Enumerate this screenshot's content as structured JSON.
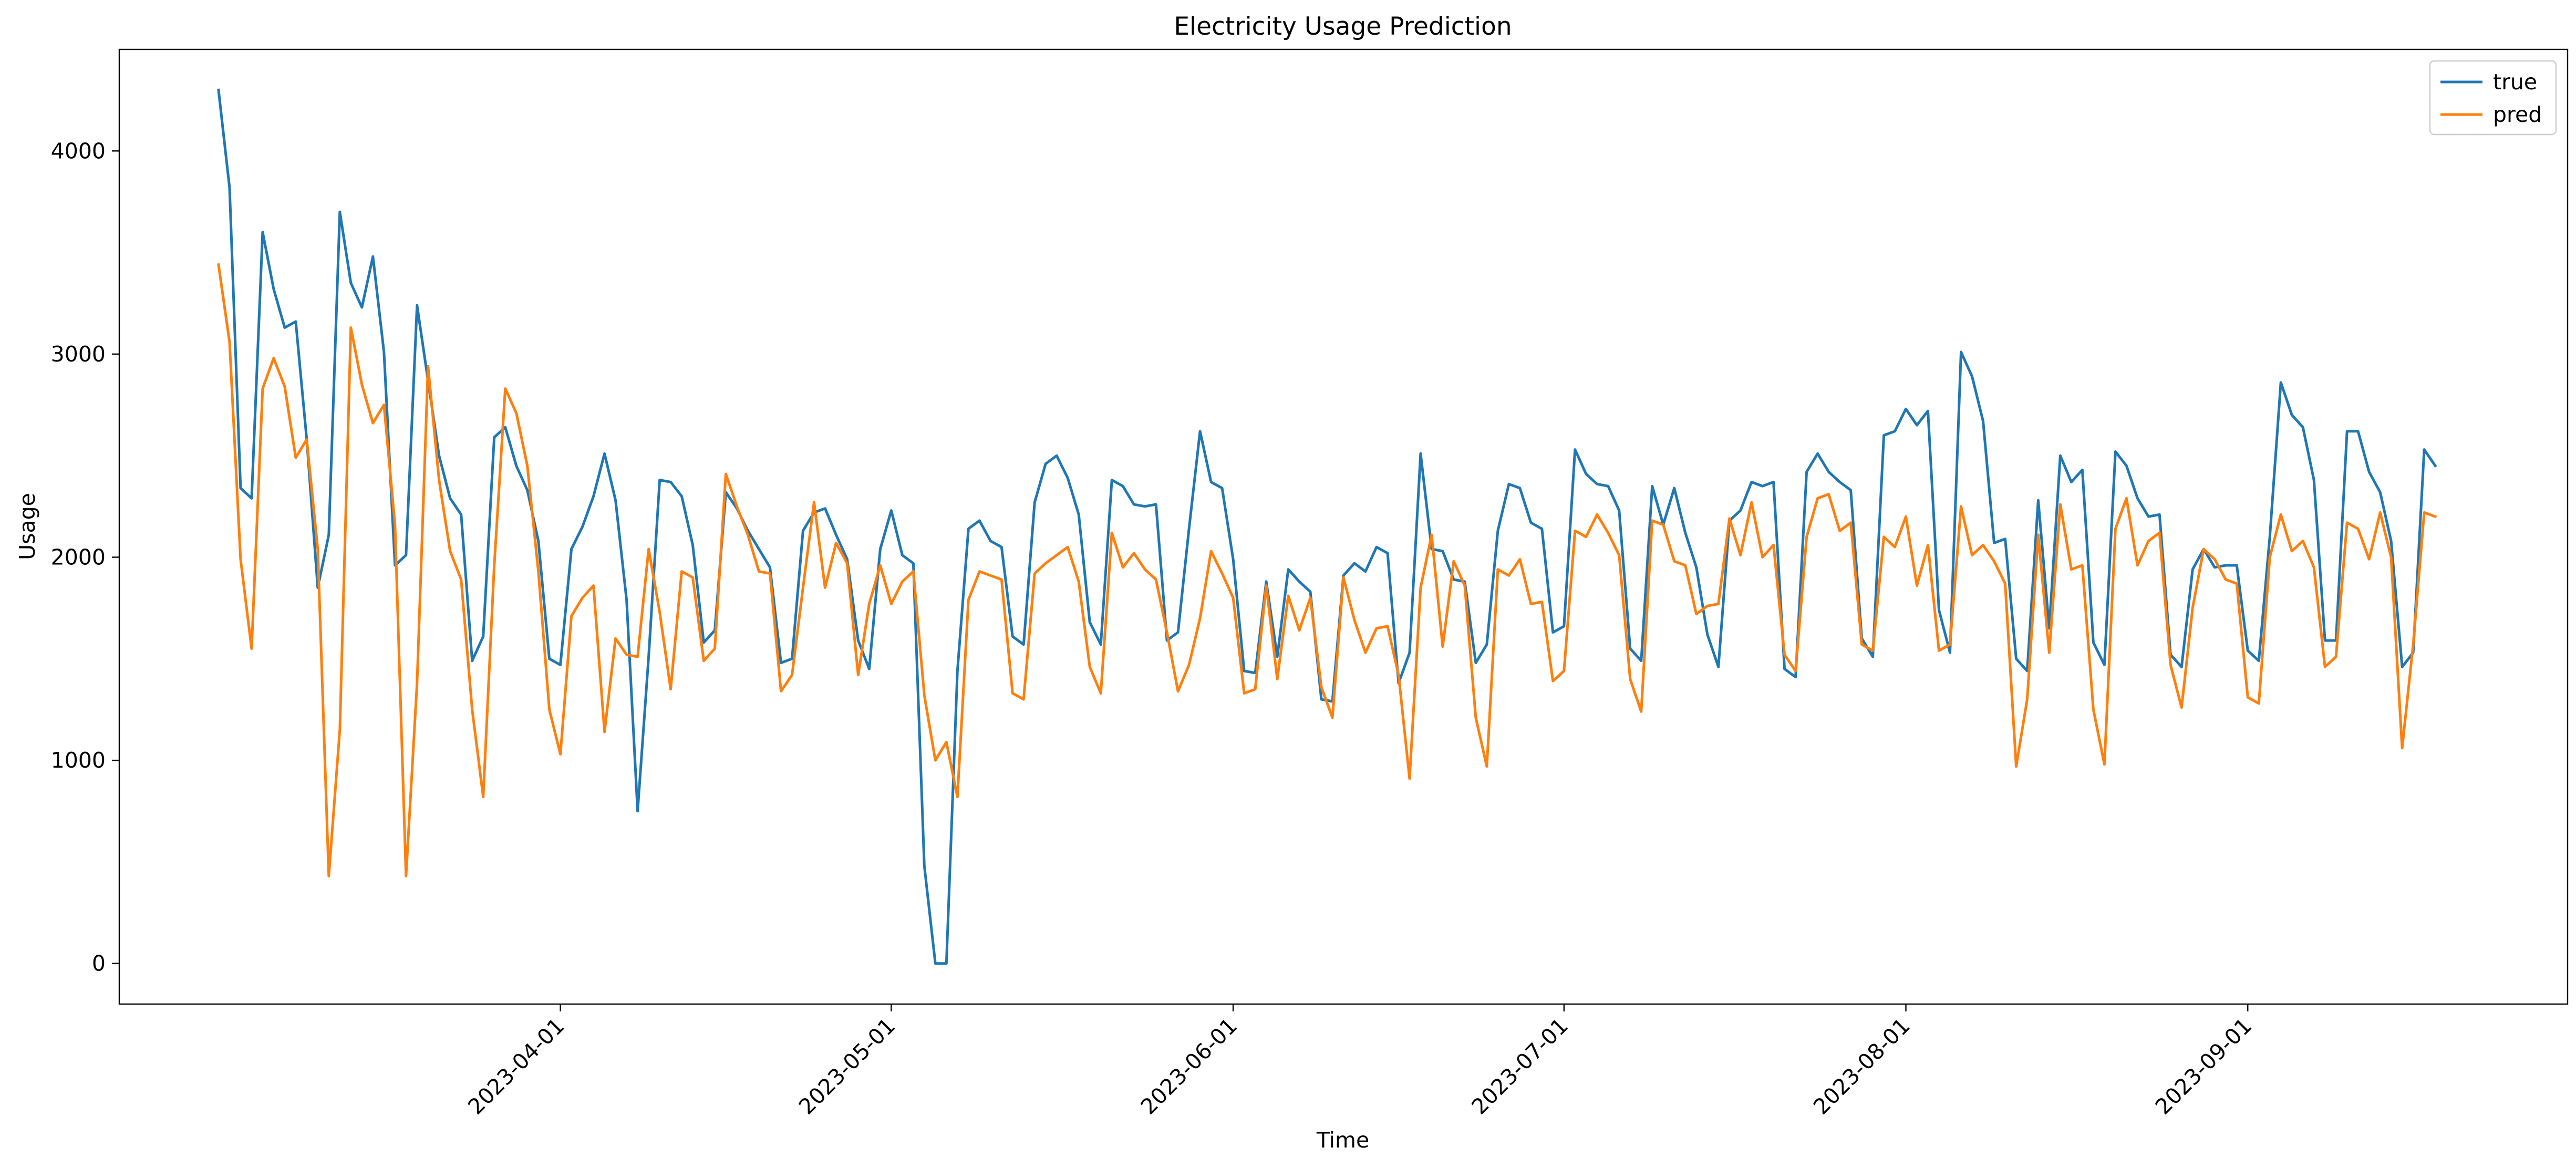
{
  "chart_data": {
    "type": "line",
    "title": "Electricity Usage Prediction",
    "xlabel": "Time",
    "ylabel": "Usage",
    "x_start": "2023-03-01",
    "x_step_days": 1,
    "xlim": [
      "2023-02-20",
      "2023-09-30"
    ],
    "ylim": [
      -200,
      4500
    ],
    "x_ticks": [
      "2023-04-01",
      "2023-05-01",
      "2023-06-01",
      "2023-07-01",
      "2023-08-01",
      "2023-09-01"
    ],
    "y_ticks": [
      0,
      1000,
      2000,
      3000,
      4000
    ],
    "grid": false,
    "legend_position": "top-right",
    "colors": {
      "true": "#1f77b4",
      "pred": "#ff7f0e"
    },
    "series": [
      {
        "name": "true",
        "values": [
          4300,
          3820,
          2340,
          2290,
          3600,
          3320,
          3130,
          3160,
          2580,
          1850,
          2110,
          3700,
          3350,
          3230,
          3480,
          3010,
          1960,
          2010,
          3240,
          2870,
          2500,
          2290,
          2210,
          1490,
          1610,
          2590,
          2640,
          2450,
          2330,
          2080,
          1500,
          1470,
          2040,
          2150,
          2300,
          2510,
          2280,
          1790,
          750,
          1510,
          2380,
          2370,
          2300,
          2060,
          1580,
          1640,
          2320,
          2240,
          2130,
          2040,
          1950,
          1480,
          1500,
          2130,
          2220,
          2240,
          2110,
          1990,
          1590,
          1450,
          2040,
          2230,
          2010,
          1970,
          480,
          0,
          0,
          1440,
          2140,
          2180,
          2080,
          2050,
          1610,
          1570,
          2270,
          2460,
          2500,
          2390,
          2210,
          1680,
          1570,
          2380,
          2350,
          2260,
          2250,
          2260,
          1590,
          1630,
          2140,
          2620,
          2370,
          2340,
          1990,
          1440,
          1430,
          1880,
          1510,
          1940,
          1880,
          1830,
          1300,
          1290,
          1910,
          1970,
          1930,
          2050,
          2020,
          1380,
          1530,
          2510,
          2040,
          2030,
          1890,
          1880,
          1480,
          1570,
          2130,
          2360,
          2340,
          2170,
          2140,
          1630,
          1660,
          2530,
          2410,
          2360,
          2350,
          2230,
          1550,
          1490,
          2350,
          2160,
          2340,
          2120,
          1950,
          1620,
          1460,
          2180,
          2230,
          2370,
          2350,
          2370,
          1450,
          1410,
          2420,
          2510,
          2420,
          2370,
          2330,
          1600,
          1510,
          2600,
          2620,
          2730,
          2650,
          2720,
          1740,
          1530,
          3010,
          2890,
          2670,
          2070,
          2090,
          1500,
          1440,
          2280,
          1650,
          2500,
          2370,
          2430,
          1580,
          1470,
          2520,
          2450,
          2290,
          2200,
          2210,
          1520,
          1460,
          1940,
          2040,
          1950,
          1960,
          1960,
          1540,
          1490,
          2100,
          2860,
          2700,
          2640,
          2380,
          1590,
          1590,
          2620,
          2620,
          2420,
          2320,
          2080,
          1460,
          1530,
          2530,
          2450
        ]
      },
      {
        "name": "pred",
        "values": [
          3440,
          3060,
          1990,
          1550,
          2830,
          2980,
          2840,
          2490,
          2580,
          2040,
          430,
          1150,
          3130,
          2850,
          2660,
          2750,
          2160,
          430,
          1380,
          2940,
          2380,
          2030,
          1890,
          1250,
          820,
          1960,
          2830,
          2710,
          2450,
          1930,
          1250,
          1030,
          1710,
          1800,
          1860,
          1140,
          1600,
          1520,
          1510,
          2040,
          1730,
          1350,
          1930,
          1900,
          1490,
          1550,
          2410,
          2250,
          2110,
          1930,
          1920,
          1340,
          1420,
          1850,
          2270,
          1850,
          2070,
          1970,
          1420,
          1770,
          1960,
          1770,
          1880,
          1930,
          1320,
          1000,
          1090,
          820,
          1790,
          1930,
          1910,
          1890,
          1330,
          1300,
          1920,
          1970,
          2010,
          2050,
          1880,
          1460,
          1330,
          2120,
          1950,
          2020,
          1940,
          1890,
          1630,
          1340,
          1470,
          1700,
          2030,
          1920,
          1800,
          1330,
          1350,
          1860,
          1400,
          1810,
          1640,
          1800,
          1360,
          1210,
          1900,
          1690,
          1530,
          1650,
          1660,
          1420,
          910,
          1850,
          2110,
          1560,
          1980,
          1860,
          1210,
          970,
          1940,
          1910,
          1990,
          1770,
          1780,
          1390,
          1440,
          2130,
          2100,
          2210,
          2120,
          2010,
          1400,
          1240,
          2180,
          2160,
          1980,
          1960,
          1720,
          1760,
          1770,
          2190,
          2010,
          2270,
          2000,
          2060,
          1520,
          1440,
          2100,
          2290,
          2310,
          2130,
          2170,
          1570,
          1540,
          2100,
          2050,
          2200,
          1860,
          2060,
          1540,
          1570,
          2250,
          2010,
          2060,
          1980,
          1870,
          970,
          1300,
          2110,
          1530,
          2260,
          1940,
          1960,
          1250,
          980,
          2140,
          2290,
          1960,
          2080,
          2120,
          1470,
          1260,
          1750,
          2040,
          1990,
          1890,
          1870,
          1310,
          1280,
          2000,
          2210,
          2030,
          2080,
          1950,
          1460,
          1510,
          2170,
          2140,
          1990,
          2220,
          2000,
          1060,
          1570,
          2220,
          2200
        ]
      }
    ]
  }
}
